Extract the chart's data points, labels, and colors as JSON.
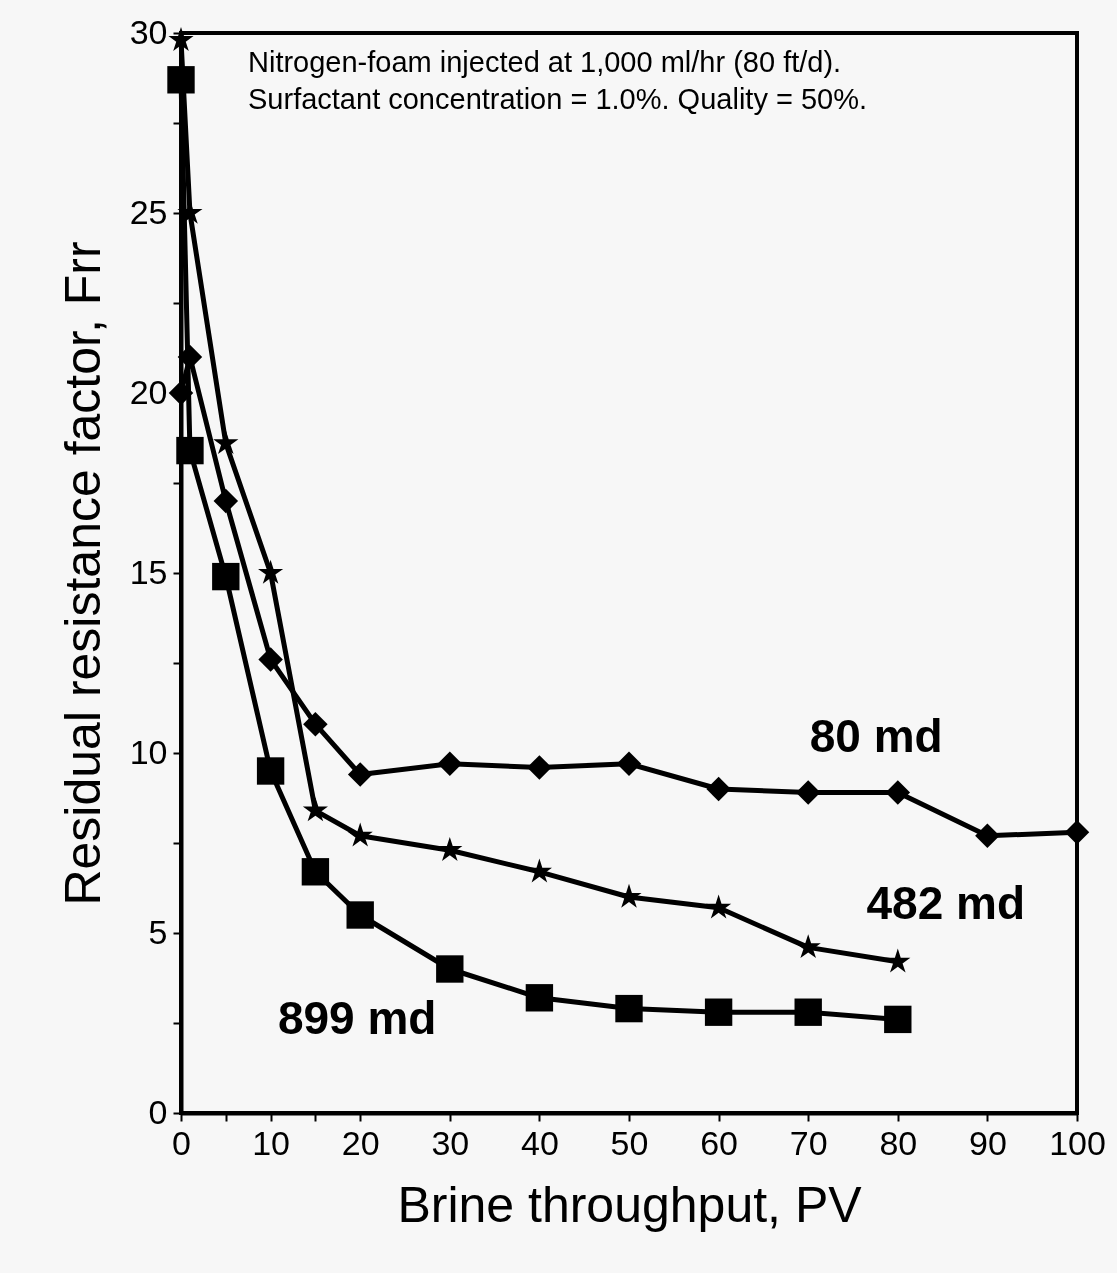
{
  "chart_data": {
    "type": "line",
    "xlabel": "Brine throughput, PV",
    "ylabel": "Residual resistance factor, Frr",
    "annotations": [
      "Nitrogen-foam injected at 1,000 ml/hr (80 ft/d).",
      "Surfactant concentration = 1.0%.  Quality = 50%."
    ],
    "xlim": [
      0,
      100
    ],
    "ylim": [
      0,
      30
    ],
    "xticks": [
      0,
      {
        "value": 5,
        "label": null
      },
      10,
      {
        "value": 15,
        "label": null
      },
      20,
      30,
      40,
      50,
      60,
      70,
      80,
      90,
      100
    ],
    "yticks": [
      0,
      {
        "value": 2.5,
        "label": null
      },
      5,
      {
        "value": 7.5,
        "label": null
      },
      10,
      {
        "value": 12.5,
        "label": null
      },
      15,
      {
        "value": 17.5,
        "label": null
      },
      20,
      {
        "value": 22.5,
        "label": null
      },
      25,
      {
        "value": 27.5,
        "label": null
      },
      30
    ],
    "grid": false,
    "line_style": "solid",
    "series": [
      {
        "name": "80 md",
        "color": "#000000",
        "marker": "diamond",
        "x": [
          0,
          1,
          5,
          10,
          15,
          20,
          30,
          40,
          50,
          60,
          70,
          80,
          90,
          100
        ],
        "values": [
          20.0,
          21.0,
          17.0,
          12.6,
          10.8,
          9.4,
          9.7,
          9.6,
          9.7,
          9.0,
          8.9,
          8.9,
          7.7,
          7.8
        ]
      },
      {
        "name": "482 md",
        "color": "#000000",
        "marker": "star",
        "x": [
          0,
          1,
          5,
          10,
          15,
          20,
          30,
          40,
          50,
          60,
          70,
          80
        ],
        "values": [
          29.8,
          25.0,
          18.6,
          15.0,
          8.4,
          7.7,
          7.3,
          6.7,
          6.0,
          5.7,
          4.6,
          4.2
        ]
      },
      {
        "name": "899 md",
        "color": "#000000",
        "marker": "square",
        "x": [
          0,
          1,
          5,
          10,
          15,
          20,
          30,
          40,
          50,
          60,
          70,
          80
        ],
        "values": [
          28.7,
          18.4,
          14.9,
          9.5,
          6.7,
          5.5,
          4.0,
          3.2,
          2.9,
          2.8,
          2.8,
          2.6
        ]
      }
    ]
  }
}
